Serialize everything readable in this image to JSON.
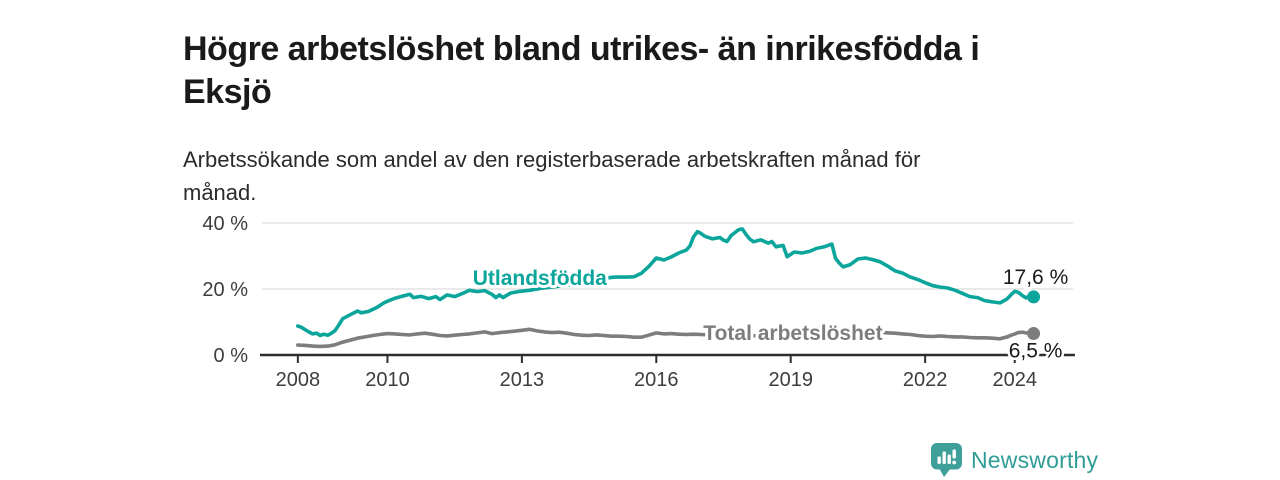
{
  "header": {
    "title_line1": "Högre arbetslöshet bland utrikes- än inrikesfödda i",
    "title_line2": "Eksjö",
    "subtitle_line1": "Arbetssökande som andel av den registerbaserade arbetskraften månad för",
    "subtitle_line2": "månad."
  },
  "logo": {
    "text": "Newsworthy",
    "icon": "newsworthy-chart-bubble-icon",
    "icon_color": "#3f9f99",
    "text_color": "#2f9c96"
  },
  "colors": {
    "accent_teal": "#0ca59c",
    "series_gray": "#7d7d7d",
    "grid": "#dcdcdc",
    "axis": "#2e2e2e",
    "tick_text": "#3d3d3d",
    "end_label_text": "#1a1a1a",
    "background": "#ffffff"
  },
  "chart_data": {
    "type": "line",
    "title": "Högre arbetslöshet bland utrikes- än inrikesfödda i Eksjö",
    "subtitle": "Arbetssökande som andel av den registerbaserade arbetskraften månad för månad.",
    "grid": "horizontal-only",
    "x_axis": {
      "range": [
        2007.2,
        2025.3
      ],
      "ticks": [
        2008,
        2010,
        2013,
        2016,
        2019,
        2022,
        2024
      ],
      "tick_labels": [
        "2008",
        "2010",
        "2013",
        "2016",
        "2019",
        "2022",
        "2024"
      ]
    },
    "y_axis": {
      "range": [
        0,
        42
      ],
      "unit": "%",
      "ticks": [
        0,
        20,
        40
      ],
      "tick_labels": [
        "0 %",
        "20 %",
        "40 %"
      ]
    },
    "series": [
      {
        "name": "Utlandsfödda",
        "color": "#0ca59c",
        "end_value": 17.6,
        "end_label": "17,6 %",
        "end_label_position": "above",
        "label_anchor": [
          2013.4,
          23.3
        ],
        "points": [
          [
            2008.0,
            8.8
          ],
          [
            2008.08,
            8.4
          ],
          [
            2008.17,
            7.6
          ],
          [
            2008.25,
            7.0
          ],
          [
            2008.33,
            6.4
          ],
          [
            2008.42,
            6.6
          ],
          [
            2008.5,
            5.9
          ],
          [
            2008.58,
            6.3
          ],
          [
            2008.67,
            6.0
          ],
          [
            2008.75,
            6.6
          ],
          [
            2008.83,
            7.4
          ],
          [
            2008.92,
            9.2
          ],
          [
            2009.0,
            11.0
          ],
          [
            2009.17,
            12.2
          ],
          [
            2009.33,
            13.3
          ],
          [
            2009.42,
            12.8
          ],
          [
            2009.58,
            13.2
          ],
          [
            2009.75,
            14.3
          ],
          [
            2009.92,
            15.8
          ],
          [
            2010.0,
            16.3
          ],
          [
            2010.17,
            17.2
          ],
          [
            2010.33,
            17.8
          ],
          [
            2010.5,
            18.4
          ],
          [
            2010.58,
            17.4
          ],
          [
            2010.75,
            17.8
          ],
          [
            2010.92,
            17.1
          ],
          [
            2011.08,
            17.7
          ],
          [
            2011.17,
            16.8
          ],
          [
            2011.33,
            18.2
          ],
          [
            2011.5,
            17.7
          ],
          [
            2011.67,
            18.6
          ],
          [
            2011.83,
            19.6
          ],
          [
            2012.0,
            19.2
          ],
          [
            2012.17,
            19.5
          ],
          [
            2012.33,
            18.4
          ],
          [
            2012.42,
            17.4
          ],
          [
            2012.5,
            18.2
          ],
          [
            2012.58,
            17.4
          ],
          [
            2012.75,
            18.8
          ],
          [
            2012.92,
            19.2
          ],
          [
            2013.17,
            19.6
          ],
          [
            2013.42,
            20.2
          ],
          [
            2013.67,
            20.6
          ],
          [
            2013.92,
            21.0
          ],
          [
            2014.17,
            21.5
          ],
          [
            2014.42,
            22.1
          ],
          [
            2014.67,
            22.8
          ],
          [
            2014.92,
            23.4
          ],
          [
            2015.08,
            23.6
          ],
          [
            2015.33,
            23.6
          ],
          [
            2015.5,
            23.7
          ],
          [
            2015.67,
            24.8
          ],
          [
            2015.83,
            26.8
          ],
          [
            2016.0,
            29.4
          ],
          [
            2016.17,
            28.8
          ],
          [
            2016.33,
            29.7
          ],
          [
            2016.5,
            30.9
          ],
          [
            2016.67,
            31.8
          ],
          [
            2016.75,
            33.0
          ],
          [
            2016.83,
            35.8
          ],
          [
            2016.92,
            37.4
          ],
          [
            2017.0,
            36.8
          ],
          [
            2017.08,
            36.0
          ],
          [
            2017.25,
            35.2
          ],
          [
            2017.42,
            35.6
          ],
          [
            2017.5,
            34.8
          ],
          [
            2017.58,
            34.4
          ],
          [
            2017.67,
            36.2
          ],
          [
            2017.83,
            37.9
          ],
          [
            2017.92,
            38.2
          ],
          [
            2018.0,
            36.6
          ],
          [
            2018.08,
            35.2
          ],
          [
            2018.17,
            34.3
          ],
          [
            2018.33,
            34.9
          ],
          [
            2018.5,
            33.9
          ],
          [
            2018.58,
            34.4
          ],
          [
            2018.67,
            32.8
          ],
          [
            2018.83,
            33.2
          ],
          [
            2018.92,
            29.8
          ],
          [
            2019.08,
            31.2
          ],
          [
            2019.25,
            30.9
          ],
          [
            2019.42,
            31.4
          ],
          [
            2019.58,
            32.3
          ],
          [
            2019.75,
            32.8
          ],
          [
            2019.92,
            33.6
          ],
          [
            2020.0,
            29.3
          ],
          [
            2020.08,
            27.9
          ],
          [
            2020.17,
            26.7
          ],
          [
            2020.33,
            27.4
          ],
          [
            2020.5,
            29.1
          ],
          [
            2020.67,
            29.4
          ],
          [
            2020.83,
            28.9
          ],
          [
            2021.0,
            28.2
          ],
          [
            2021.17,
            26.9
          ],
          [
            2021.33,
            25.5
          ],
          [
            2021.5,
            24.8
          ],
          [
            2021.67,
            23.6
          ],
          [
            2021.83,
            22.9
          ],
          [
            2022.0,
            21.9
          ],
          [
            2022.17,
            21.0
          ],
          [
            2022.33,
            20.6
          ],
          [
            2022.5,
            20.3
          ],
          [
            2022.67,
            19.6
          ],
          [
            2022.83,
            18.7
          ],
          [
            2023.0,
            17.7
          ],
          [
            2023.17,
            17.4
          ],
          [
            2023.33,
            16.5
          ],
          [
            2023.5,
            16.1
          ],
          [
            2023.67,
            15.8
          ],
          [
            2023.83,
            17.0
          ],
          [
            2023.92,
            18.3
          ],
          [
            2024.0,
            19.3
          ],
          [
            2024.08,
            19.0
          ],
          [
            2024.17,
            18.0
          ],
          [
            2024.25,
            17.3
          ],
          [
            2024.33,
            17.9
          ],
          [
            2024.42,
            17.6
          ]
        ]
      },
      {
        "name": "Total arbetslöshet",
        "color": "#7d7d7d",
        "end_value": 6.5,
        "end_label": "6,5 %",
        "end_label_position": "below",
        "label_anchor": [
          2019.05,
          6.7
        ],
        "points": [
          [
            2008.0,
            3.0
          ],
          [
            2008.17,
            2.9
          ],
          [
            2008.33,
            2.7
          ],
          [
            2008.5,
            2.6
          ],
          [
            2008.67,
            2.7
          ],
          [
            2008.83,
            3.1
          ],
          [
            2009.0,
            3.9
          ],
          [
            2009.17,
            4.5
          ],
          [
            2009.33,
            5.1
          ],
          [
            2009.5,
            5.5
          ],
          [
            2009.67,
            5.9
          ],
          [
            2009.83,
            6.2
          ],
          [
            2010.0,
            6.5
          ],
          [
            2010.17,
            6.4
          ],
          [
            2010.33,
            6.2
          ],
          [
            2010.5,
            6.1
          ],
          [
            2010.67,
            6.4
          ],
          [
            2010.83,
            6.6
          ],
          [
            2011.0,
            6.3
          ],
          [
            2011.17,
            5.9
          ],
          [
            2011.33,
            5.8
          ],
          [
            2011.5,
            6.0
          ],
          [
            2011.67,
            6.2
          ],
          [
            2011.83,
            6.4
          ],
          [
            2012.0,
            6.7
          ],
          [
            2012.17,
            7.0
          ],
          [
            2012.33,
            6.5
          ],
          [
            2012.5,
            6.8
          ],
          [
            2012.67,
            7.0
          ],
          [
            2012.83,
            7.2
          ],
          [
            2013.0,
            7.5
          ],
          [
            2013.17,
            7.8
          ],
          [
            2013.33,
            7.3
          ],
          [
            2013.5,
            7.0
          ],
          [
            2013.67,
            6.8
          ],
          [
            2013.83,
            6.9
          ],
          [
            2014.0,
            6.6
          ],
          [
            2014.17,
            6.2
          ],
          [
            2014.33,
            6.0
          ],
          [
            2014.5,
            5.9
          ],
          [
            2014.67,
            6.1
          ],
          [
            2014.83,
            5.9
          ],
          [
            2015.0,
            5.7
          ],
          [
            2015.17,
            5.7
          ],
          [
            2015.33,
            5.6
          ],
          [
            2015.5,
            5.4
          ],
          [
            2015.67,
            5.4
          ],
          [
            2015.83,
            6.0
          ],
          [
            2016.0,
            6.7
          ],
          [
            2016.17,
            6.4
          ],
          [
            2016.33,
            6.5
          ],
          [
            2016.5,
            6.3
          ],
          [
            2016.67,
            6.2
          ],
          [
            2016.83,
            6.3
          ],
          [
            2017.0,
            6.2
          ],
          [
            2017.25,
            6.0
          ],
          [
            2017.5,
            6.1
          ],
          [
            2017.75,
            6.0
          ],
          [
            2018.0,
            5.9
          ],
          [
            2018.25,
            5.8
          ],
          [
            2018.5,
            5.9
          ],
          [
            2018.75,
            5.9
          ],
          [
            2019.0,
            6.0
          ],
          [
            2019.25,
            6.1
          ],
          [
            2019.5,
            6.2
          ],
          [
            2019.75,
            6.4
          ],
          [
            2020.0,
            6.7
          ],
          [
            2020.17,
            7.0
          ],
          [
            2020.33,
            7.2
          ],
          [
            2020.5,
            7.2
          ],
          [
            2020.67,
            7.1
          ],
          [
            2020.83,
            7.0
          ],
          [
            2021.0,
            6.9
          ],
          [
            2021.17,
            6.7
          ],
          [
            2021.33,
            6.6
          ],
          [
            2021.5,
            6.4
          ],
          [
            2021.67,
            6.2
          ],
          [
            2021.83,
            5.9
          ],
          [
            2022.0,
            5.7
          ],
          [
            2022.17,
            5.6
          ],
          [
            2022.33,
            5.8
          ],
          [
            2022.5,
            5.6
          ],
          [
            2022.67,
            5.5
          ],
          [
            2022.83,
            5.5
          ],
          [
            2023.0,
            5.3
          ],
          [
            2023.17,
            5.2
          ],
          [
            2023.33,
            5.2
          ],
          [
            2023.5,
            5.1
          ],
          [
            2023.67,
            4.9
          ],
          [
            2023.83,
            5.5
          ],
          [
            2023.92,
            6.0
          ],
          [
            2024.0,
            6.4
          ],
          [
            2024.08,
            6.8
          ],
          [
            2024.17,
            6.9
          ],
          [
            2024.25,
            6.7
          ],
          [
            2024.33,
            6.6
          ],
          [
            2024.42,
            6.5
          ]
        ]
      }
    ]
  }
}
